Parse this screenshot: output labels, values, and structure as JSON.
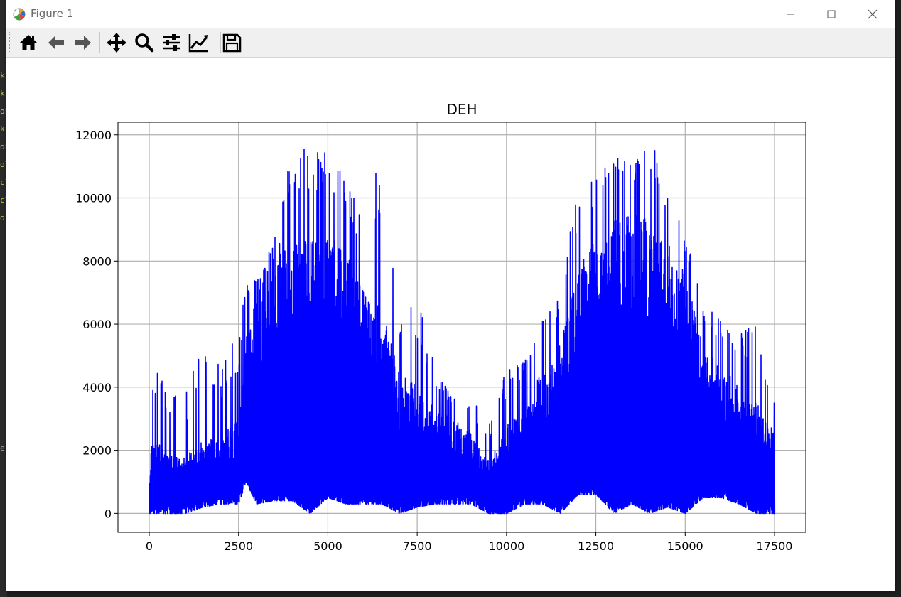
{
  "window": {
    "title": "Figure 1",
    "controls": [
      "minimize",
      "maximize",
      "close"
    ]
  },
  "background_gutter": {
    "lines": [
      "k",
      "k",
      "ok",
      "k",
      "ok",
      "ol",
      "cl",
      "cl",
      "ol",
      "e"
    ]
  },
  "toolbar": {
    "buttons": [
      {
        "name": "home",
        "icon": "home-icon"
      },
      {
        "name": "back",
        "icon": "arrow-left-icon"
      },
      {
        "name": "forward",
        "icon": "arrow-right-icon"
      },
      {
        "name": "pan",
        "icon": "move-icon"
      },
      {
        "name": "zoom",
        "icon": "magnifier-icon"
      },
      {
        "name": "configure-subplots",
        "icon": "sliders-icon"
      },
      {
        "name": "edit-axis",
        "icon": "line-chart-icon"
      },
      {
        "name": "save",
        "icon": "floppy-icon"
      }
    ]
  },
  "chart_data": {
    "type": "line",
    "title": "DEH",
    "xlabel": "",
    "ylabel": "",
    "xlim": [
      -875,
      18375
    ],
    "ylim": [
      -600,
      12400
    ],
    "xticks": [
      0,
      2500,
      5000,
      7500,
      10000,
      12500,
      15000,
      17500
    ],
    "xtick_labels": [
      "0",
      "2500",
      "5000",
      "7500",
      "10000",
      "12500",
      "15000",
      "17500"
    ],
    "yticks": [
      0,
      2000,
      4000,
      6000,
      8000,
      10000,
      12000
    ],
    "ytick_labels": [
      "0",
      "2000",
      "4000",
      "6000",
      "8000",
      "10000",
      "12000"
    ],
    "grid": true,
    "line_color": "#0000ff",
    "series": [
      {
        "x_range": [
          0,
          17500
        ],
        "n_points_approx": 17520,
        "envelope_x": [
          0,
          50,
          500,
          1000,
          1500,
          2000,
          2500,
          2700,
          3000,
          3500,
          4000,
          4500,
          5000,
          5500,
          6000,
          6500,
          7000,
          7500,
          8000,
          8500,
          9000,
          9500,
          10000,
          10500,
          11000,
          11500,
          12000,
          12500,
          13000,
          13500,
          14000,
          14500,
          15000,
          15500,
          16000,
          16500,
          17000,
          17500
        ],
        "envelope_max": [
          1600,
          4800,
          4500,
          3800,
          5400,
          4700,
          5800,
          8100,
          7300,
          8700,
          11600,
          11700,
          11700,
          11000,
          9500,
          11700,
          6100,
          7100,
          4600,
          3700,
          3700,
          2800,
          4600,
          5000,
          6500,
          7100,
          10500,
          10600,
          11500,
          11100,
          11900,
          10600,
          8900,
          6600,
          6200,
          5900,
          6200,
          4100
        ],
        "envelope_min": [
          0,
          0,
          0,
          0,
          200,
          300,
          300,
          1000,
          300,
          400,
          400,
          0,
          500,
          300,
          300,
          300,
          0,
          200,
          300,
          300,
          300,
          0,
          0,
          300,
          300,
          0,
          600,
          600,
          0,
          300,
          0,
          200,
          0,
          500,
          500,
          300,
          0,
          0
        ],
        "typical_high": [
          600,
          2400,
          2000,
          1800,
          2300,
          2500,
          3000,
          5500,
          7300,
          8600,
          8600,
          8700,
          8800,
          8500,
          7000,
          6500,
          4500,
          4000,
          3300,
          3000,
          2600,
          1700,
          2800,
          3600,
          4600,
          5400,
          7900,
          9000,
          9300,
          9600,
          9500,
          8600,
          7600,
          5300,
          4700,
          4100,
          3500,
          2600
        ],
        "noise_seed": 7
      }
    ]
  }
}
